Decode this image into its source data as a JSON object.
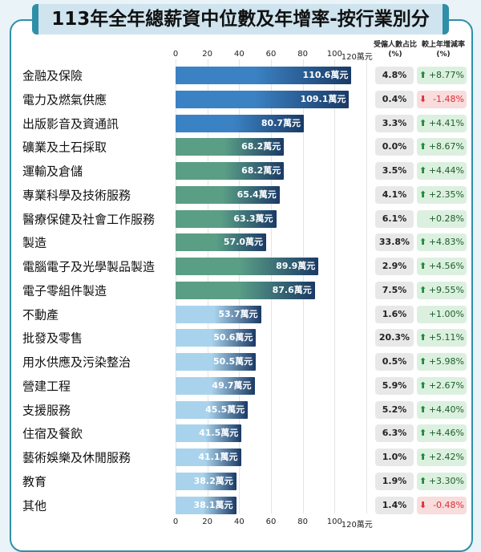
{
  "title": "113年全年總薪資中位數及年增率-按行業別分",
  "chart_data": {
    "type": "bar",
    "orientation": "horizontal",
    "unit": "萬元",
    "xlim": [
      0,
      120
    ],
    "ticks": [
      "0",
      "20",
      "40",
      "60",
      "80",
      "100",
      "120萬元"
    ],
    "columns": {
      "share": "受僱人數占比\n(%)",
      "change": "較上年增減率\n(%)"
    },
    "colors": {
      "group1": "#3b82c4",
      "group2": "#5a9e86",
      "group3": "#a9d3ec",
      "dark": "#1a3a66",
      "up": "#1f8a3c",
      "down": "#d9303a",
      "up_bg": "#dcf0df",
      "down_bg": "#f9dcdc"
    },
    "rows": [
      {
        "category": "金融及保險",
        "value": 110.6,
        "label": "110.6萬元",
        "share": "4.8%",
        "change": "+8.77%",
        "dir": "up",
        "group": 1
      },
      {
        "category": "電力及燃氣供應",
        "value": 109.1,
        "label": "109.1萬元",
        "share": "0.4%",
        "change": "-1.48%",
        "dir": "down",
        "group": 1
      },
      {
        "category": "出版影音及資通訊",
        "value": 80.7,
        "label": "80.7萬元",
        "share": "3.3%",
        "change": "+4.41%",
        "dir": "up",
        "group": 1
      },
      {
        "category": "礦業及土石採取",
        "value": 68.2,
        "label": "68.2萬元",
        "share": "0.0%",
        "change": "+8.67%",
        "dir": "up",
        "group": 2
      },
      {
        "category": "運輸及倉儲",
        "value": 68.2,
        "label": "68.2萬元",
        "share": "3.5%",
        "change": "+4.44%",
        "dir": "up",
        "group": 2
      },
      {
        "category": "專業科學及技術服務",
        "value": 65.4,
        "label": "65.4萬元",
        "share": "4.1%",
        "change": "+2.35%",
        "dir": "up",
        "group": 2
      },
      {
        "category": "醫療保健及社會工作服務",
        "value": 63.3,
        "label": "63.3萬元",
        "share": "6.1%",
        "change": "+0.28%",
        "dir": "none",
        "group": 2
      },
      {
        "category": "製造",
        "value": 57.0,
        "label": "57.0萬元",
        "share": "33.8%",
        "change": "+4.83%",
        "dir": "up",
        "group": 2
      },
      {
        "category": "電腦電子及光學製品製造",
        "value": 89.9,
        "label": "89.9萬元",
        "share": "2.9%",
        "change": "+4.56%",
        "dir": "up",
        "group": 2
      },
      {
        "category": "電子零組件製造",
        "value": 87.6,
        "label": "87.6萬元",
        "share": "7.5%",
        "change": "+9.55%",
        "dir": "up",
        "group": 2
      },
      {
        "category": "不動產",
        "value": 53.7,
        "label": "53.7萬元",
        "share": "1.6%",
        "change": "+1.00%",
        "dir": "none",
        "group": 3
      },
      {
        "category": "批發及零售",
        "value": 50.6,
        "label": "50.6萬元",
        "share": "20.3%",
        "change": "+5.11%",
        "dir": "up",
        "group": 3
      },
      {
        "category": "用水供應及污染整治",
        "value": 50.5,
        "label": "50.5萬元",
        "share": "0.5%",
        "change": "+5.98%",
        "dir": "up",
        "group": 3
      },
      {
        "category": "營建工程",
        "value": 49.7,
        "label": "49.7萬元",
        "share": "5.9%",
        "change": "+2.67%",
        "dir": "up",
        "group": 3
      },
      {
        "category": "支援服務",
        "value": 45.5,
        "label": "45.5萬元",
        "share": "5.2%",
        "change": "+4.40%",
        "dir": "up",
        "group": 3
      },
      {
        "category": "住宿及餐飲",
        "value": 41.5,
        "label": "41.5萬元",
        "share": "6.3%",
        "change": "+4.46%",
        "dir": "up",
        "group": 3
      },
      {
        "category": "藝術娛樂及休閒服務",
        "value": 41.1,
        "label": "41.1萬元",
        "share": "1.0%",
        "change": "+2.42%",
        "dir": "up",
        "group": 3
      },
      {
        "category": "教育",
        "value": 38.2,
        "label": "38.2萬元",
        "share": "1.9%",
        "change": "+3.30%",
        "dir": "up",
        "group": 3
      },
      {
        "category": "其他",
        "value": 38.1,
        "label": "38.1萬元",
        "share": "1.4%",
        "change": "-0.48%",
        "dir": "down",
        "group": 3
      }
    ]
  }
}
